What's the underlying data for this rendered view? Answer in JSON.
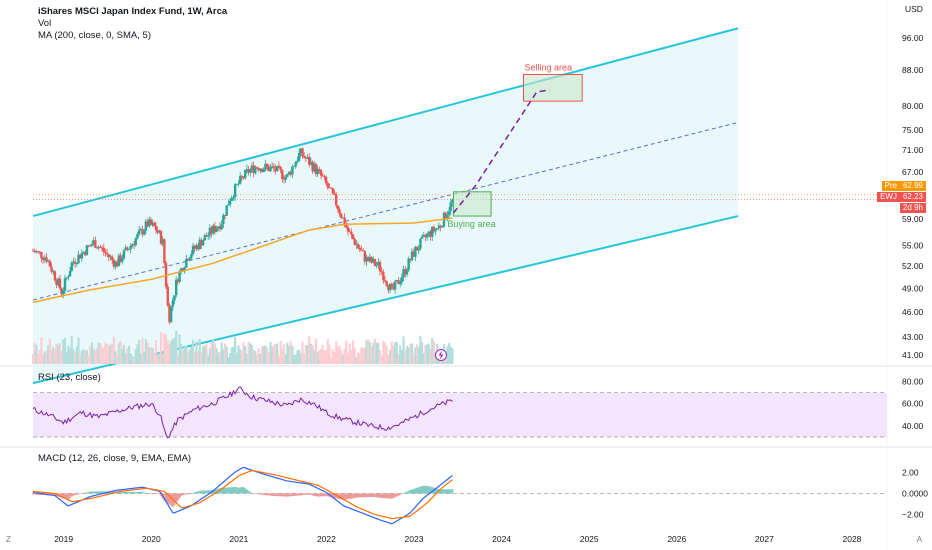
{
  "header": {
    "title": "iShares MSCI Japan Index Fund, 1W, Arca",
    "vol_label": "Vol",
    "ma_label": "MA (200, close, 0, SMA, 5)",
    "rsi_label": "RSI (23, close)",
    "macd_label": "MACD (12, 26, close, 9, EMA, EMA)",
    "currency": "USD"
  },
  "annotations": {
    "selling": "Selling area",
    "buying": "Buying area"
  },
  "price_tags": {
    "pre_label": "Pre",
    "pre_value": "62.99",
    "ticker_label": "EWJ",
    "last_value": "62.23",
    "countdown": "2d 9h"
  },
  "footer": {
    "left_mark": "Z",
    "right_mark": "A"
  },
  "colors": {
    "channel": "#26c6da",
    "channel_fill": "#e0f7fa",
    "ma": "#f5a623",
    "up": "#26a69a",
    "down": "#ef5350",
    "rsi": "#7b1fa2",
    "rsi_band": "#f3e5ff",
    "macd": "#2962ff",
    "signal": "#ff6d00",
    "selling_box": "#ef5350",
    "buying_box": "#4caf50",
    "projection": "#7b1fa2",
    "pre_tag": "#ff9800",
    "ticker_tag": "#ef5350"
  },
  "chart_data": {
    "type": "candlestick",
    "x_ticks": [
      "2019",
      "2020",
      "2021",
      "2022",
      "2023",
      "2024",
      "2025",
      "2026",
      "2027",
      "2028"
    ],
    "x_range": [
      2018.65,
      2028.4
    ],
    "price_ticks": [
      "96.00",
      "88.00",
      "80.00",
      "75.00",
      "71.00",
      "67.00",
      "59.00",
      "55.00",
      "52.00",
      "49.00",
      "46.00",
      "43.00",
      "41.00"
    ],
    "price_scale": "log",
    "price_range": [
      40.0,
      104.0
    ],
    "rsi_ticks": [
      "80.00",
      "60.00",
      "40.00"
    ],
    "rsi_range": [
      20,
      85
    ],
    "rsi_bands": [
      70,
      30
    ],
    "macd_ticks": [
      "2.00",
      "0.0000",
      "−2.00"
    ],
    "macd_range": [
      -3.3,
      3.2
    ],
    "price_path": [
      [
        2018.65,
        54.2
      ],
      [
        2018.8,
        53.3
      ],
      [
        2018.98,
        48.5
      ],
      [
        2019.1,
        52.6
      ],
      [
        2019.35,
        55.5
      ],
      [
        2019.6,
        52.3
      ],
      [
        2019.85,
        56.4
      ],
      [
        2019.96,
        58.3
      ],
      [
        2020.05,
        57.6
      ],
      [
        2020.13,
        55.5
      ],
      [
        2020.2,
        45.0
      ],
      [
        2020.3,
        50.5
      ],
      [
        2020.42,
        53.5
      ],
      [
        2020.6,
        56.0
      ],
      [
        2020.8,
        58.5
      ],
      [
        2020.9,
        62.5
      ],
      [
        2021.0,
        65.0
      ],
      [
        2021.1,
        67.0
      ],
      [
        2021.2,
        68.0
      ],
      [
        2021.4,
        67.5
      ],
      [
        2021.55,
        66.0
      ],
      [
        2021.7,
        70.5
      ],
      [
        2021.82,
        68.5
      ],
      [
        2021.95,
        66.0
      ],
      [
        2022.1,
        62.0
      ],
      [
        2022.25,
        57.0
      ],
      [
        2022.45,
        53.0
      ],
      [
        2022.6,
        52.0
      ],
      [
        2022.75,
        48.5
      ],
      [
        2022.9,
        51.5
      ],
      [
        2023.0,
        54.0
      ],
      [
        2023.15,
        56.5
      ],
      [
        2023.3,
        58.0
      ],
      [
        2023.45,
        62.23
      ]
    ],
    "ma_path": [
      [
        2018.65,
        47.2
      ],
      [
        2019.3,
        48.8
      ],
      [
        2020.0,
        50.2
      ],
      [
        2020.7,
        52.4
      ],
      [
        2021.3,
        55.0
      ],
      [
        2021.8,
        57.3
      ],
      [
        2022.2,
        58.2
      ],
      [
        2022.6,
        58.3
      ],
      [
        2023.0,
        58.4
      ],
      [
        2023.45,
        59.2
      ]
    ],
    "channel_upper": [
      [
        2018.65,
        59.5
      ],
      [
        2026.7,
        98.5
      ]
    ],
    "channel_lower": [
      [
        2018.65,
        38.0
      ],
      [
        2026.7,
        59.5
      ]
    ],
    "channel_mid": [
      [
        2018.65,
        47.5
      ],
      [
        2026.7,
        76.5
      ]
    ],
    "projection": [
      [
        2023.45,
        60.0
      ],
      [
        2023.7,
        64.5
      ],
      [
        2024.4,
        83.0
      ],
      [
        2024.55,
        83.5
      ]
    ],
    "selling_area": {
      "x": [
        2024.25,
        2024.92
      ],
      "y": [
        81.0,
        87.0
      ]
    },
    "buying_area": {
      "x": [
        2023.45,
        2023.88
      ],
      "y": [
        59.5,
        63.5
      ]
    },
    "pre_price": 62.99,
    "last_price": 62.23,
    "rsi_path": [
      [
        2018.65,
        55
      ],
      [
        2018.85,
        49
      ],
      [
        2019.0,
        43
      ],
      [
        2019.2,
        52
      ],
      [
        2019.4,
        48
      ],
      [
        2019.6,
        53
      ],
      [
        2019.8,
        57
      ],
      [
        2020.0,
        60
      ],
      [
        2020.1,
        50
      ],
      [
        2020.18,
        28
      ],
      [
        2020.3,
        45
      ],
      [
        2020.5,
        55
      ],
      [
        2020.7,
        60
      ],
      [
        2020.9,
        68
      ],
      [
        2021.0,
        74
      ],
      [
        2021.15,
        66
      ],
      [
        2021.35,
        62
      ],
      [
        2021.55,
        58
      ],
      [
        2021.7,
        64
      ],
      [
        2021.85,
        60
      ],
      [
        2022.0,
        52
      ],
      [
        2022.15,
        47
      ],
      [
        2022.3,
        44
      ],
      [
        2022.5,
        40
      ],
      [
        2022.7,
        38
      ],
      [
        2022.85,
        42
      ],
      [
        2023.0,
        48
      ],
      [
        2023.15,
        54
      ],
      [
        2023.3,
        59
      ],
      [
        2023.45,
        63
      ]
    ],
    "macd_line": [
      [
        2018.65,
        0.1
      ],
      [
        2018.9,
        -0.2
      ],
      [
        2019.05,
        -1.2
      ],
      [
        2019.3,
        -0.3
      ],
      [
        2019.6,
        0.3
      ],
      [
        2019.9,
        0.6
      ],
      [
        2020.1,
        0.2
      ],
      [
        2020.25,
        -1.9
      ],
      [
        2020.45,
        -1.2
      ],
      [
        2020.7,
        0.2
      ],
      [
        2020.95,
        2.0
      ],
      [
        2021.05,
        2.5
      ],
      [
        2021.3,
        1.8
      ],
      [
        2021.55,
        1.2
      ],
      [
        2021.8,
        0.9
      ],
      [
        2022.0,
        0.1
      ],
      [
        2022.2,
        -1.2
      ],
      [
        2022.45,
        -2.0
      ],
      [
        2022.6,
        -2.5
      ],
      [
        2022.75,
        -2.9
      ],
      [
        2022.95,
        -1.9
      ],
      [
        2023.1,
        -0.5
      ],
      [
        2023.3,
        0.8
      ],
      [
        2023.45,
        1.8
      ]
    ],
    "signal_line": [
      [
        2018.65,
        0.2
      ],
      [
        2018.9,
        0.0
      ],
      [
        2019.1,
        -0.8
      ],
      [
        2019.35,
        -0.4
      ],
      [
        2019.65,
        0.2
      ],
      [
        2019.95,
        0.5
      ],
      [
        2020.15,
        0.2
      ],
      [
        2020.35,
        -1.4
      ],
      [
        2020.55,
        -0.9
      ],
      [
        2020.8,
        0.4
      ],
      [
        2021.0,
        1.7
      ],
      [
        2021.15,
        2.2
      ],
      [
        2021.4,
        1.8
      ],
      [
        2021.65,
        1.3
      ],
      [
        2021.9,
        0.8
      ],
      [
        2022.1,
        -0.1
      ],
      [
        2022.35,
        -1.3
      ],
      [
        2022.55,
        -2.0
      ],
      [
        2022.75,
        -2.4
      ],
      [
        2022.95,
        -2.2
      ],
      [
        2023.15,
        -0.9
      ],
      [
        2023.3,
        0.4
      ],
      [
        2023.45,
        1.4
      ]
    ]
  }
}
